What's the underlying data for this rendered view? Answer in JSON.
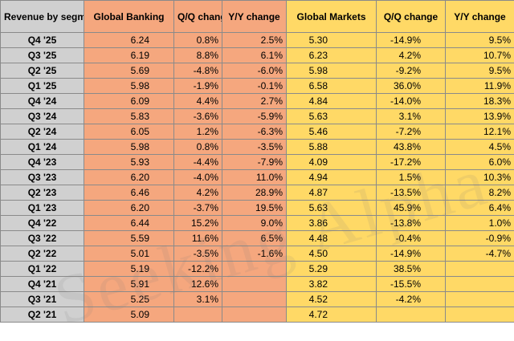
{
  "header": {
    "segment": "Revenue by segment (in $ B)",
    "gb": "Global Banking",
    "gb_qq": "Q/Q change",
    "gb_yy": "Y/Y change",
    "gm": "Global Markets",
    "gm_qq": "Q/Q change",
    "gm_yy": "Y/Y change"
  },
  "rows": [
    {
      "q": "Q4 '25",
      "gb": "6.24",
      "gbqq": "0.8%",
      "gbyy": "2.5%",
      "gm": "5.30",
      "gmqq": "-14.9%",
      "gmyy": "9.5%"
    },
    {
      "q": "Q3 '25",
      "gb": "6.19",
      "gbqq": "8.8%",
      "gbyy": "6.1%",
      "gm": "6.23",
      "gmqq": "4.2%",
      "gmyy": "10.7%"
    },
    {
      "q": "Q2 '25",
      "gb": "5.69",
      "gbqq": "-4.8%",
      "gbyy": "-6.0%",
      "gm": "5.98",
      "gmqq": "-9.2%",
      "gmyy": "9.5%"
    },
    {
      "q": "Q1 '25",
      "gb": "5.98",
      "gbqq": "-1.9%",
      "gbyy": "-0.1%",
      "gm": "6.58",
      "gmqq": "36.0%",
      "gmyy": "11.9%"
    },
    {
      "q": "Q4 '24",
      "gb": "6.09",
      "gbqq": "4.4%",
      "gbyy": "2.7%",
      "gm": "4.84",
      "gmqq": "-14.0%",
      "gmyy": "18.3%"
    },
    {
      "q": "Q3 '24",
      "gb": "5.83",
      "gbqq": "-3.6%",
      "gbyy": "-5.9%",
      "gm": "5.63",
      "gmqq": "3.1%",
      "gmyy": "13.9%"
    },
    {
      "q": "Q2 '24",
      "gb": "6.05",
      "gbqq": "1.2%",
      "gbyy": "-6.3%",
      "gm": "5.46",
      "gmqq": "-7.2%",
      "gmyy": "12.1%"
    },
    {
      "q": "Q1 '24",
      "gb": "5.98",
      "gbqq": "0.8%",
      "gbyy": "-3.5%",
      "gm": "5.88",
      "gmqq": "43.8%",
      "gmyy": "4.5%"
    },
    {
      "q": "Q4 '23",
      "gb": "5.93",
      "gbqq": "-4.4%",
      "gbyy": "-7.9%",
      "gm": "4.09",
      "gmqq": "-17.2%",
      "gmyy": "6.0%"
    },
    {
      "q": "Q3 '23",
      "gb": "6.20",
      "gbqq": "-4.0%",
      "gbyy": "11.0%",
      "gm": "4.94",
      "gmqq": "1.5%",
      "gmyy": "10.3%"
    },
    {
      "q": "Q2 '23",
      "gb": "6.46",
      "gbqq": "4.2%",
      "gbyy": "28.9%",
      "gm": "4.87",
      "gmqq": "-13.5%",
      "gmyy": "8.2%"
    },
    {
      "q": "Q1 '23",
      "gb": "6.20",
      "gbqq": "-3.7%",
      "gbyy": "19.5%",
      "gm": "5.63",
      "gmqq": "45.9%",
      "gmyy": "6.4%"
    },
    {
      "q": "Q4 '22",
      "gb": "6.44",
      "gbqq": "15.2%",
      "gbyy": "9.0%",
      "gm": "3.86",
      "gmqq": "-13.8%",
      "gmyy": "1.0%"
    },
    {
      "q": "Q3 '22",
      "gb": "5.59",
      "gbqq": "11.6%",
      "gbyy": "6.5%",
      "gm": "4.48",
      "gmqq": "-0.4%",
      "gmyy": "-0.9%"
    },
    {
      "q": "Q2 '22",
      "gb": "5.01",
      "gbqq": "-3.5%",
      "gbyy": "-1.6%",
      "gm": "4.50",
      "gmqq": "-14.9%",
      "gmyy": "-4.7%"
    },
    {
      "q": "Q1 '22",
      "gb": "5.19",
      "gbqq": "-12.2%",
      "gbyy": "",
      "gm": "5.29",
      "gmqq": "38.5%",
      "gmyy": ""
    },
    {
      "q": "Q4 '21",
      "gb": "5.91",
      "gbqq": "12.6%",
      "gbyy": "",
      "gm": "3.82",
      "gmqq": "-15.5%",
      "gmyy": ""
    },
    {
      "q": "Q3 '21",
      "gb": "5.25",
      "gbqq": "3.1%",
      "gbyy": "",
      "gm": "4.52",
      "gmqq": "-4.2%",
      "gmyy": ""
    },
    {
      "q": "Q2 '21",
      "gb": "5.09",
      "gbqq": "",
      "gbyy": "",
      "gm": "4.72",
      "gmqq": "",
      "gmyy": ""
    }
  ],
  "colors": {
    "gb_bg": "#f5a77e",
    "gm_bg": "#ffd966",
    "label_bg": "#d0d0d0"
  },
  "watermark": "Seeking Alpha"
}
